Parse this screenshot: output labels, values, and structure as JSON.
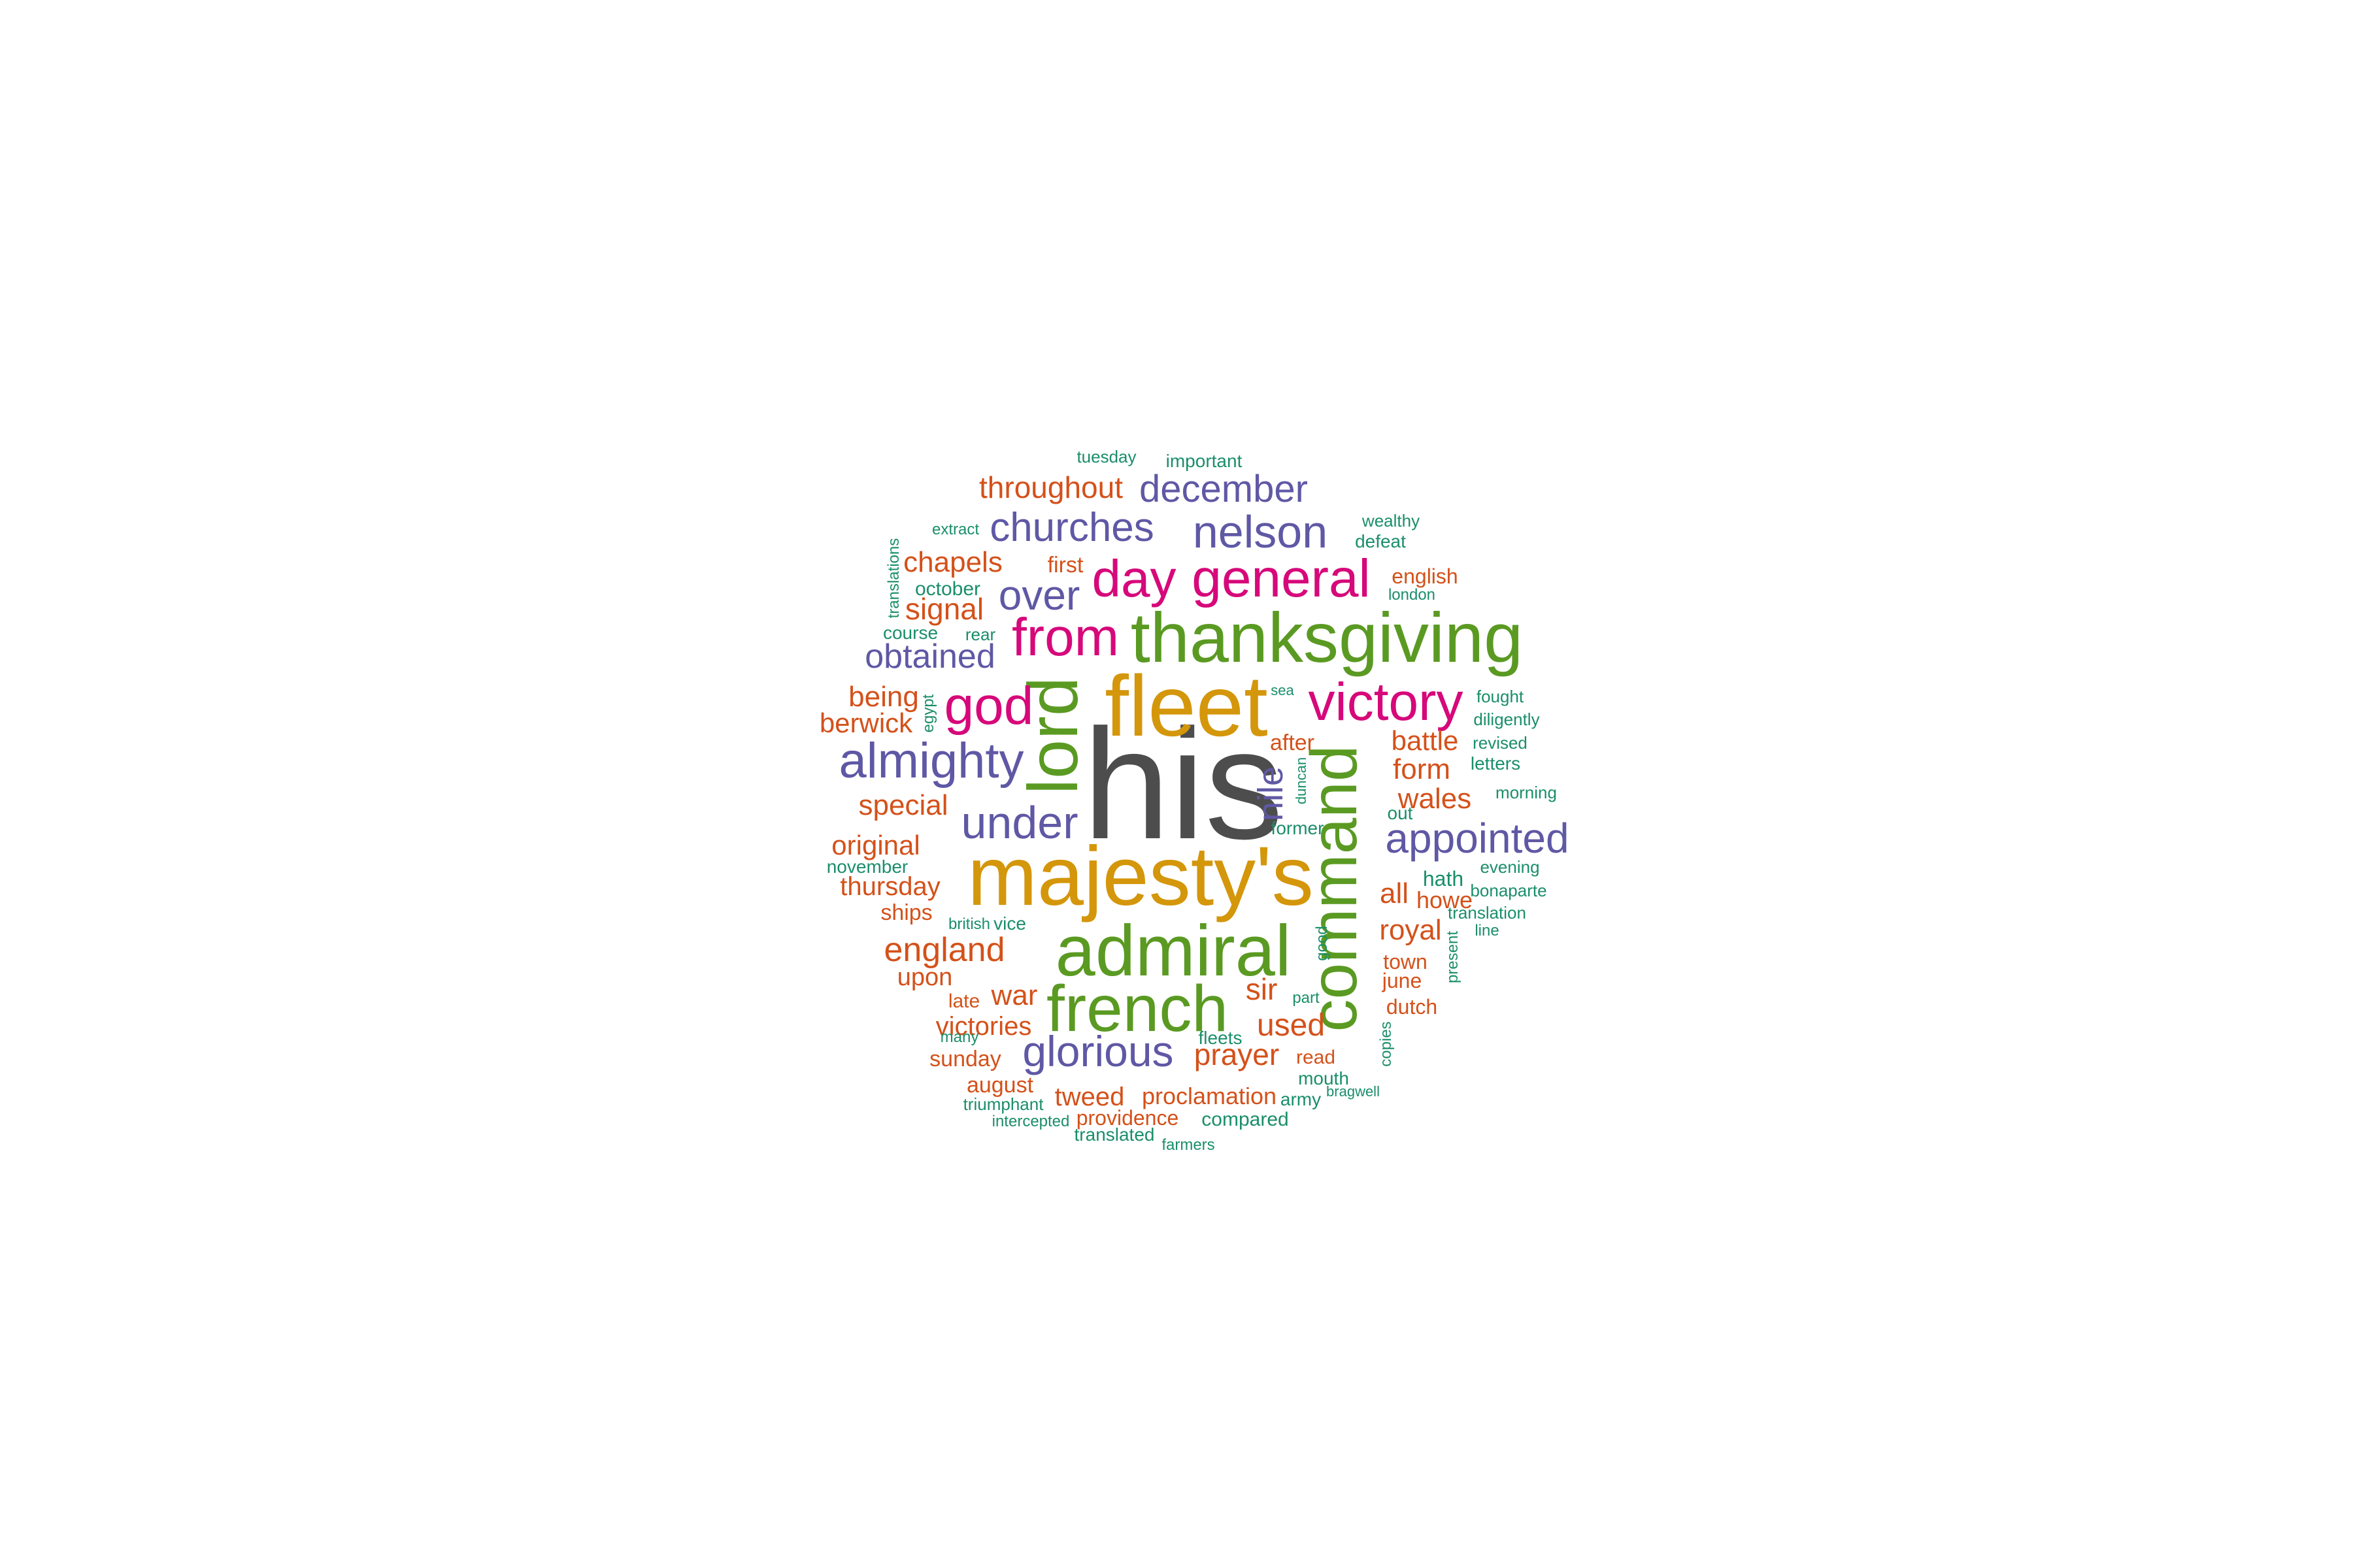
{
  "colors": {
    "charcoal": "#4d4d4d",
    "gold": "#d4960a",
    "green": "#5a9a22",
    "magenta": "#d6087a",
    "purple": "#5f58a5",
    "orange": "#d4511a",
    "teal": "#1a8e6a"
  },
  "words": [
    {
      "text": "his",
      "color": "charcoal"
    },
    {
      "text": "majesty's",
      "color": "gold"
    },
    {
      "text": "fleet",
      "color": "gold"
    },
    {
      "text": "thanksgiving",
      "color": "green"
    },
    {
      "text": "admiral",
      "color": "green"
    },
    {
      "text": "french",
      "color": "green"
    },
    {
      "text": "command",
      "color": "green"
    },
    {
      "text": "lord",
      "color": "green"
    },
    {
      "text": "victory",
      "color": "magenta"
    },
    {
      "text": "general",
      "color": "magenta"
    },
    {
      "text": "from",
      "color": "magenta"
    },
    {
      "text": "day",
      "color": "magenta"
    },
    {
      "text": "god",
      "color": "magenta"
    },
    {
      "text": "almighty",
      "color": "purple"
    },
    {
      "text": "appointed",
      "color": "purple"
    },
    {
      "text": "under",
      "color": "purple"
    },
    {
      "text": "glorious",
      "color": "purple"
    },
    {
      "text": "nelson",
      "color": "purple"
    },
    {
      "text": "december",
      "color": "purple"
    },
    {
      "text": "churches",
      "color": "purple"
    },
    {
      "text": "obtained",
      "color": "purple"
    },
    {
      "text": "over",
      "color": "purple"
    },
    {
      "text": "nile",
      "color": "purple"
    },
    {
      "text": "throughout",
      "color": "orange"
    },
    {
      "text": "england",
      "color": "orange"
    },
    {
      "text": "chapels",
      "color": "orange"
    },
    {
      "text": "signal",
      "color": "orange"
    },
    {
      "text": "being",
      "color": "orange"
    },
    {
      "text": "berwick",
      "color": "orange"
    },
    {
      "text": "special",
      "color": "orange"
    },
    {
      "text": "original",
      "color": "orange"
    },
    {
      "text": "thursday",
      "color": "orange"
    },
    {
      "text": "ships",
      "color": "orange"
    },
    {
      "text": "upon",
      "color": "orange"
    },
    {
      "text": "war",
      "color": "orange"
    },
    {
      "text": "victories",
      "color": "orange"
    },
    {
      "text": "sunday",
      "color": "orange"
    },
    {
      "text": "august",
      "color": "orange"
    },
    {
      "text": "tweed",
      "color": "orange"
    },
    {
      "text": "proclamation",
      "color": "orange"
    },
    {
      "text": "providence",
      "color": "orange"
    },
    {
      "text": "prayer",
      "color": "orange"
    },
    {
      "text": "used",
      "color": "orange"
    },
    {
      "text": "sir",
      "color": "orange"
    },
    {
      "text": "late",
      "color": "orange"
    },
    {
      "text": "first",
      "color": "orange"
    },
    {
      "text": "after",
      "color": "orange"
    },
    {
      "text": "battle",
      "color": "orange"
    },
    {
      "text": "form",
      "color": "orange"
    },
    {
      "text": "wales",
      "color": "orange"
    },
    {
      "text": "all",
      "color": "orange"
    },
    {
      "text": "howe",
      "color": "orange"
    },
    {
      "text": "royal",
      "color": "orange"
    },
    {
      "text": "town",
      "color": "orange"
    },
    {
      "text": "june",
      "color": "orange"
    },
    {
      "text": "dutch",
      "color": "orange"
    },
    {
      "text": "read",
      "color": "orange"
    },
    {
      "text": "english",
      "color": "orange"
    },
    {
      "text": "tuesday",
      "color": "teal"
    },
    {
      "text": "important",
      "color": "teal"
    },
    {
      "text": "extract",
      "color": "teal"
    },
    {
      "text": "translations",
      "color": "teal"
    },
    {
      "text": "october",
      "color": "teal"
    },
    {
      "text": "course",
      "color": "teal"
    },
    {
      "text": "rear",
      "color": "teal"
    },
    {
      "text": "egypt",
      "color": "teal"
    },
    {
      "text": "november",
      "color": "teal"
    },
    {
      "text": "british",
      "color": "teal"
    },
    {
      "text": "vice",
      "color": "teal"
    },
    {
      "text": "many",
      "color": "teal"
    },
    {
      "text": "triumphant",
      "color": "teal"
    },
    {
      "text": "intercepted",
      "color": "teal"
    },
    {
      "text": "translated",
      "color": "teal"
    },
    {
      "text": "farmers",
      "color": "teal"
    },
    {
      "text": "compared",
      "color": "teal"
    },
    {
      "text": "army",
      "color": "teal"
    },
    {
      "text": "bragwell",
      "color": "teal"
    },
    {
      "text": "mouth",
      "color": "teal"
    },
    {
      "text": "fleets",
      "color": "teal"
    },
    {
      "text": "part",
      "color": "teal"
    },
    {
      "text": "good",
      "color": "teal"
    },
    {
      "text": "copies",
      "color": "teal"
    },
    {
      "text": "present",
      "color": "teal"
    },
    {
      "text": "line",
      "color": "teal"
    },
    {
      "text": "translation",
      "color": "teal"
    },
    {
      "text": "bonaparte",
      "color": "teal"
    },
    {
      "text": "evening",
      "color": "teal"
    },
    {
      "text": "hath",
      "color": "teal"
    },
    {
      "text": "former",
      "color": "teal"
    },
    {
      "text": "out",
      "color": "teal"
    },
    {
      "text": "morning",
      "color": "teal"
    },
    {
      "text": "letters",
      "color": "teal"
    },
    {
      "text": "revised",
      "color": "teal"
    },
    {
      "text": "diligently",
      "color": "teal"
    },
    {
      "text": "fought",
      "color": "teal"
    },
    {
      "text": "sea",
      "color": "teal"
    },
    {
      "text": "duncan",
      "color": "teal"
    },
    {
      "text": "london",
      "color": "teal"
    },
    {
      "text": "defeat",
      "color": "teal"
    },
    {
      "text": "wealthy",
      "color": "teal"
    }
  ]
}
